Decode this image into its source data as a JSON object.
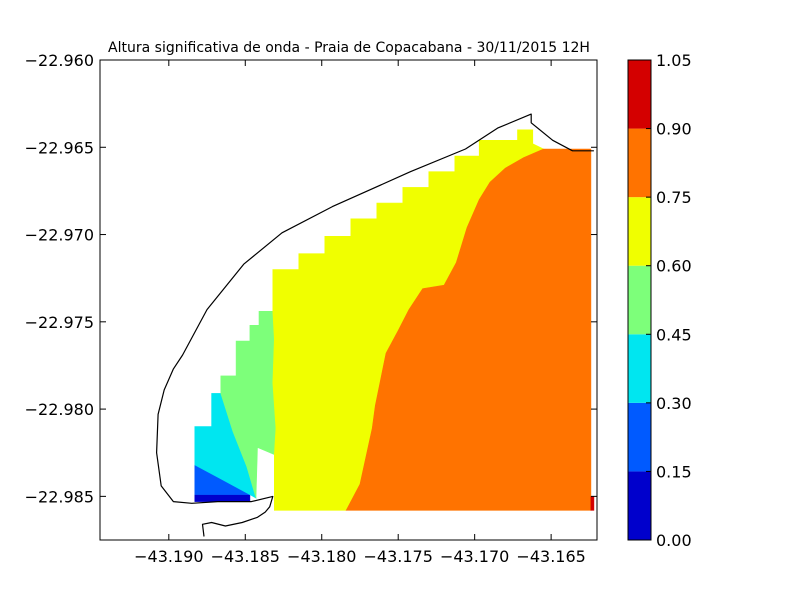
{
  "chart_data": {
    "type": "heatmap",
    "title": "Altura significativa de onda - Praia de Copacabana - 30/11/2015 12H",
    "xlabel": "",
    "ylabel": "",
    "xlim": [
      -43.1945,
      -43.162
    ],
    "ylim": [
      -22.9875,
      -22.96
    ],
    "xticks": [
      "−43.190",
      "−43.185",
      "−43.180",
      "−43.175",
      "−43.170",
      "−43.165"
    ],
    "xtick_values": [
      -43.19,
      -43.185,
      -43.18,
      -43.175,
      -43.17,
      -43.165
    ],
    "yticks": [
      "−22.960",
      "−22.965",
      "−22.970",
      "−22.975",
      "−22.980",
      "−22.985"
    ],
    "ytick_values": [
      -22.96,
      -22.965,
      -22.97,
      -22.975,
      -22.98,
      -22.985
    ],
    "colorbar": {
      "levels": [
        0.0,
        0.15,
        0.3,
        0.45,
        0.6,
        0.75,
        0.9,
        1.05
      ],
      "labels": [
        "0.00",
        "0.15",
        "0.30",
        "0.45",
        "0.60",
        "0.75",
        "0.90",
        "1.05"
      ],
      "colors": [
        "#0000cc",
        "#005aff",
        "#00e6f0",
        "#7dff7a",
        "#f0ff00",
        "#ff7300",
        "#d40000"
      ]
    },
    "coastline": [
      [
        -43.1877,
        -22.9873
      ],
      [
        -43.1878,
        -22.9866
      ],
      [
        -43.1872,
        -22.9865
      ],
      [
        -43.1863,
        -22.9867
      ],
      [
        -43.1852,
        -22.9865
      ],
      [
        -43.1842,
        -22.9862
      ],
      [
        -43.1837,
        -22.9859
      ],
      [
        -43.1834,
        -22.9856
      ],
      [
        -43.1832,
        -22.985
      ],
      [
        -43.1846,
        -22.9853
      ],
      [
        -43.1868,
        -22.9853
      ],
      [
        -43.1885,
        -22.9854
      ],
      [
        -43.1897,
        -22.9853
      ],
      [
        -43.1905,
        -22.9844
      ],
      [
        -43.1908,
        -22.9825
      ],
      [
        -43.1907,
        -22.9803
      ],
      [
        -43.1903,
        -22.9789
      ],
      [
        -43.1897,
        -22.9777
      ],
      [
        -43.1891,
        -22.9769
      ],
      [
        -43.1875,
        -22.9743
      ],
      [
        -43.1851,
        -22.9717
      ],
      [
        -43.1826,
        -22.9699
      ],
      [
        -43.1793,
        -22.9684
      ],
      [
        -43.1742,
        -22.9664
      ],
      [
        -43.1706,
        -22.9651
      ],
      [
        -43.1685,
        -22.9639
      ],
      [
        -43.1663,
        -22.9631
      ],
      [
        -43.1663,
        -22.9636
      ],
      [
        -43.1649,
        -22.9646
      ],
      [
        -43.1636,
        -22.9652
      ],
      [
        -43.1622,
        -22.9652
      ]
    ],
    "regions": [
      {
        "value": 0.075,
        "poly": [
          [
            -43.1883,
            -22.9849
          ],
          [
            -43.1847,
            -22.9849
          ],
          [
            -43.1847,
            -22.9853
          ],
          [
            -43.1883,
            -22.9853
          ]
        ]
      },
      {
        "value": 0.225,
        "poly": [
          [
            -43.1883,
            -22.9832
          ],
          [
            -43.1866,
            -22.984
          ],
          [
            -43.1847,
            -22.9849
          ],
          [
            -43.1883,
            -22.9849
          ]
        ]
      },
      {
        "value": 0.375,
        "poly": [
          [
            -43.1883,
            -22.981
          ],
          [
            -43.1872,
            -22.981
          ],
          [
            -43.1872,
            -22.9791
          ],
          [
            -43.1866,
            -22.9791
          ],
          [
            -43.1858,
            -22.9813
          ],
          [
            -43.1849,
            -22.9833
          ],
          [
            -43.1843,
            -22.9851
          ],
          [
            -43.1847,
            -22.9849
          ],
          [
            -43.1866,
            -22.984
          ],
          [
            -43.1883,
            -22.9832
          ]
        ]
      },
      {
        "value": 0.525,
        "poly": [
          [
            -43.1866,
            -22.9791
          ],
          [
            -43.1866,
            -22.9781
          ],
          [
            -43.1856,
            -22.9781
          ],
          [
            -43.1856,
            -22.9761
          ],
          [
            -43.1847,
            -22.9761
          ],
          [
            -43.1847,
            -22.9752
          ],
          [
            -43.1841,
            -22.9752
          ],
          [
            -43.1841,
            -22.9744
          ],
          [
            -43.1832,
            -22.9744
          ],
          [
            -43.1831,
            -22.976
          ],
          [
            -43.1832,
            -22.9785
          ],
          [
            -43.183,
            -22.9811
          ],
          [
            -43.1831,
            -22.9826
          ],
          [
            -43.1842,
            -22.9822
          ],
          [
            -43.1843,
            -22.9851
          ],
          [
            -43.1849,
            -22.9833
          ],
          [
            -43.1858,
            -22.9813
          ]
        ]
      },
      {
        "value": 0.675,
        "poly": [
          [
            -43.1832,
            -22.9744
          ],
          [
            -43.1832,
            -22.972
          ],
          [
            -43.1815,
            -22.972
          ],
          [
            -43.1815,
            -22.9711
          ],
          [
            -43.1798,
            -22.9711
          ],
          [
            -43.1798,
            -22.9701
          ],
          [
            -43.1781,
            -22.9701
          ],
          [
            -43.1781,
            -22.9691
          ],
          [
            -43.1764,
            -22.9691
          ],
          [
            -43.1764,
            -22.9682
          ],
          [
            -43.1747,
            -22.9682
          ],
          [
            -43.1747,
            -22.9673
          ],
          [
            -43.173,
            -22.9673
          ],
          [
            -43.173,
            -22.9664
          ],
          [
            -43.1713,
            -22.9664
          ],
          [
            -43.1713,
            -22.9655
          ],
          [
            -43.1697,
            -22.9655
          ],
          [
            -43.1697,
            -22.9646
          ],
          [
            -43.1672,
            -22.9646
          ],
          [
            -43.1672,
            -22.964
          ],
          [
            -43.1662,
            -22.964
          ],
          [
            -43.1662,
            -22.9648
          ],
          [
            -43.1655,
            -22.9651
          ],
          [
            -43.1668,
            -22.9656
          ],
          [
            -43.168,
            -22.9662
          ],
          [
            -43.169,
            -22.967
          ],
          [
            -43.1697,
            -22.968
          ],
          [
            -43.1705,
            -22.9696
          ],
          [
            -43.1712,
            -22.9716
          ],
          [
            -43.172,
            -22.9729
          ],
          [
            -43.1734,
            -22.9731
          ],
          [
            -43.1743,
            -22.9743
          ],
          [
            -43.175,
            -22.9755
          ],
          [
            -43.1758,
            -22.9768
          ],
          [
            -43.1765,
            -22.9798
          ],
          [
            -43.1767,
            -22.9811
          ],
          [
            -43.1775,
            -22.9843
          ],
          [
            -43.1784,
            -22.9858
          ],
          [
            -43.1831,
            -22.9858
          ],
          [
            -43.1831,
            -22.9826
          ],
          [
            -43.183,
            -22.9811
          ],
          [
            -43.1832,
            -22.9785
          ],
          [
            -43.1831,
            -22.976
          ]
        ]
      },
      {
        "value": 0.825,
        "poly": [
          [
            -43.1784,
            -22.9858
          ],
          [
            -43.1775,
            -22.9843
          ],
          [
            -43.1767,
            -22.9811
          ],
          [
            -43.1765,
            -22.9798
          ],
          [
            -43.1758,
            -22.9768
          ],
          [
            -43.175,
            -22.9755
          ],
          [
            -43.1743,
            -22.9743
          ],
          [
            -43.1734,
            -22.9731
          ],
          [
            -43.172,
            -22.9729
          ],
          [
            -43.1712,
            -22.9716
          ],
          [
            -43.1705,
            -22.9696
          ],
          [
            -43.1697,
            -22.968
          ],
          [
            -43.169,
            -22.967
          ],
          [
            -43.168,
            -22.9662
          ],
          [
            -43.1668,
            -22.9656
          ],
          [
            -43.1655,
            -22.9651
          ],
          [
            -43.1624,
            -22.9651
          ],
          [
            -43.1624,
            -22.9858
          ]
        ]
      },
      {
        "value": 0.975,
        "poly": [
          [
            -43.1624,
            -22.9858
          ],
          [
            -43.1624,
            -22.985
          ],
          [
            -43.1622,
            -22.985
          ],
          [
            -43.1622,
            -22.9858
          ]
        ]
      }
    ]
  }
}
